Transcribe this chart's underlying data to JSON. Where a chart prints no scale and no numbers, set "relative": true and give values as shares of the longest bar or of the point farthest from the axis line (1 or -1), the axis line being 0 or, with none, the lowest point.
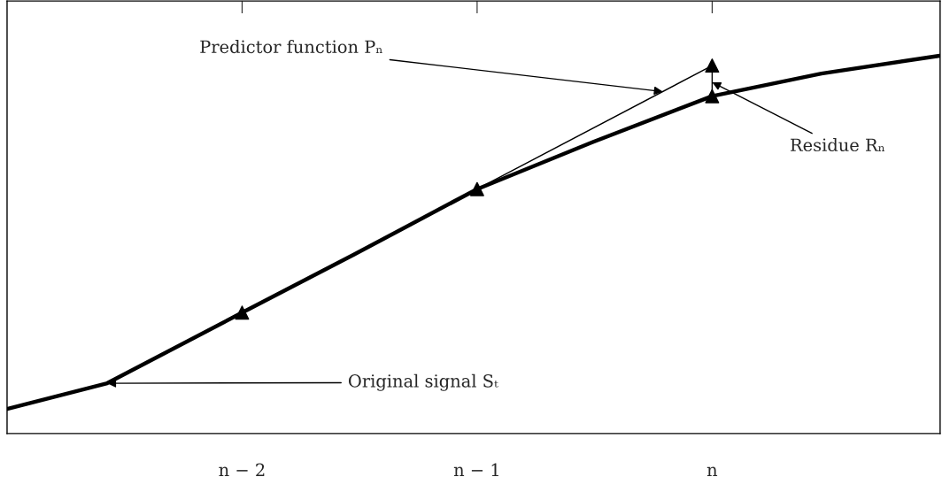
{
  "chart_data": {
    "type": "line",
    "relative": true,
    "xlim": [
      -3.0,
      0.97
    ],
    "xticks": [
      {
        "value": -2,
        "label": "n − 2"
      },
      {
        "value": -1,
        "label": "n − 1"
      },
      {
        "value": 0,
        "label": "n"
      }
    ],
    "tick_labels": "x",
    "grid": false,
    "series": [
      {
        "color": "#000000",
        "marker": "none",
        "line_style": "solid",
        "x": [
          -3.0,
          -2.574,
          -2.0,
          -1.523,
          -1.0,
          -0.51,
          0.0,
          0.465,
          0.968
        ],
        "values": [
          0.065,
          0.133,
          0.32,
          0.474,
          0.647,
          0.771,
          0.893,
          0.953,
          1.0
        ]
      },
      {
        "color": "#000000",
        "marker": "none",
        "line_style": "solid",
        "x": [
          -1.0,
          0.0
        ],
        "values": [
          0.647,
          0.974
        ]
      },
      {
        "color": "#000000",
        "marker": "none",
        "line_style": "solid",
        "x": [
          0.0,
          0.0
        ],
        "values": [
          0.893,
          0.974
        ]
      },
      {
        "type": "scatter",
        "color": "#000000",
        "marker": "triangle",
        "x": [
          -2.0,
          -1.0,
          0.0,
          0.0
        ],
        "values": [
          0.32,
          0.647,
          0.893,
          0.974
        ]
      }
    ],
    "annotations": [
      {
        "text": "Predictor function Pₙ",
        "x": -0.21,
        "y": 0.905
      },
      {
        "text": "Residue Rₙ",
        "x": 0.0,
        "y": 0.93
      },
      {
        "text": "Original signal Sₜ",
        "x": -2.574,
        "y": 0.133
      }
    ]
  }
}
